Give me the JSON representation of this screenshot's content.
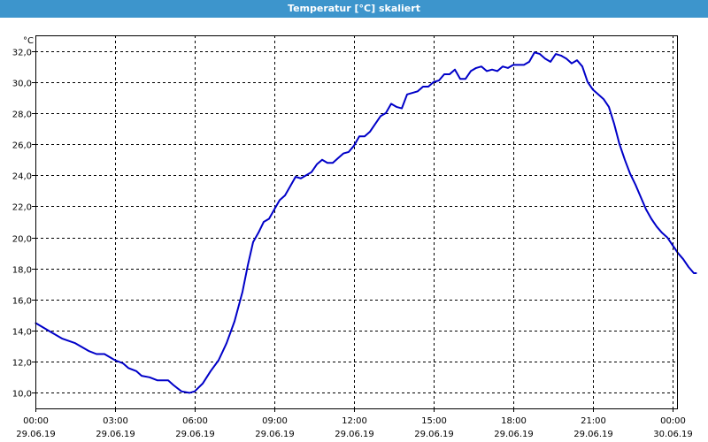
{
  "window": {
    "title": "Temperatur [°C] skaliert"
  },
  "chart_data": {
    "type": "line",
    "title": "Temperatur [°C] skaliert",
    "ylabel": "°C",
    "xlabel": "",
    "ylim": [
      9,
      33
    ],
    "xlim": [
      0,
      24
    ],
    "grid": true,
    "y_ticks": [
      10,
      12,
      14,
      16,
      18,
      20,
      22,
      24,
      26,
      28,
      30,
      32
    ],
    "y_tick_labels": [
      "10,0",
      "12,0",
      "14,0",
      "16,0",
      "18,0",
      "20,0",
      "22,0",
      "24,0",
      "26,0",
      "28,0",
      "30,0",
      "32,0"
    ],
    "x_ticks": [
      {
        "hour": 0,
        "time": "00:00",
        "date": "29.06.19"
      },
      {
        "hour": 3,
        "time": "03:00",
        "date": "29.06.19"
      },
      {
        "hour": 6,
        "time": "06:00",
        "date": "29.06.19"
      },
      {
        "hour": 9,
        "time": "09:00",
        "date": "29.06.19"
      },
      {
        "hour": 12,
        "time": "12:00",
        "date": "29.06.19"
      },
      {
        "hour": 15,
        "time": "15:00",
        "date": "29.06.19"
      },
      {
        "hour": 18,
        "time": "18:00",
        "date": "29.06.19"
      },
      {
        "hour": 21,
        "time": "21:00",
        "date": "29.06.19"
      },
      {
        "hour": 24,
        "time": "00:00",
        "date": "30.06.19"
      }
    ],
    "series": [
      {
        "color": "#0000c8",
        "points": [
          [
            0,
            14.5
          ],
          [
            0.5,
            14.0
          ],
          [
            1,
            13.5
          ],
          [
            1.5,
            13.2
          ],
          [
            2,
            12.7
          ],
          [
            2.3,
            12.5
          ],
          [
            2.6,
            12.5
          ],
          [
            3,
            12.1
          ],
          [
            3.3,
            11.9
          ],
          [
            3.5,
            11.6
          ],
          [
            3.8,
            11.4
          ],
          [
            4,
            11.1
          ],
          [
            4.3,
            11.0
          ],
          [
            4.6,
            10.8
          ],
          [
            4.8,
            10.8
          ],
          [
            5,
            10.8
          ],
          [
            5.2,
            10.5
          ],
          [
            5.5,
            10.1
          ],
          [
            5.8,
            10.0
          ],
          [
            6,
            10.1
          ],
          [
            6.3,
            10.6
          ],
          [
            6.6,
            11.4
          ],
          [
            6.9,
            12.1
          ],
          [
            7.2,
            13.2
          ],
          [
            7.5,
            14.6
          ],
          [
            7.8,
            16.5
          ],
          [
            8,
            18.2
          ],
          [
            8.2,
            19.7
          ],
          [
            8.4,
            20.3
          ],
          [
            8.6,
            21.0
          ],
          [
            8.8,
            21.2
          ],
          [
            9,
            21.8
          ],
          [
            9.2,
            22.4
          ],
          [
            9.4,
            22.7
          ],
          [
            9.6,
            23.3
          ],
          [
            9.8,
            23.9
          ],
          [
            10,
            23.8
          ],
          [
            10.2,
            24.0
          ],
          [
            10.4,
            24.2
          ],
          [
            10.6,
            24.7
          ],
          [
            10.8,
            25.0
          ],
          [
            11,
            24.8
          ],
          [
            11.2,
            24.8
          ],
          [
            11.4,
            25.1
          ],
          [
            11.6,
            25.4
          ],
          [
            11.8,
            25.5
          ],
          [
            12,
            25.9
          ],
          [
            12.2,
            26.5
          ],
          [
            12.4,
            26.5
          ],
          [
            12.6,
            26.8
          ],
          [
            12.8,
            27.3
          ],
          [
            13,
            27.8
          ],
          [
            13.2,
            28.0
          ],
          [
            13.4,
            28.6
          ],
          [
            13.6,
            28.4
          ],
          [
            13.8,
            28.3
          ],
          [
            14,
            29.2
          ],
          [
            14.2,
            29.3
          ],
          [
            14.4,
            29.4
          ],
          [
            14.6,
            29.7
          ],
          [
            14.8,
            29.7
          ],
          [
            15,
            30.0
          ],
          [
            15.2,
            30.1
          ],
          [
            15.4,
            30.5
          ],
          [
            15.6,
            30.5
          ],
          [
            15.8,
            30.8
          ],
          [
            16,
            30.2
          ],
          [
            16.2,
            30.2
          ],
          [
            16.4,
            30.7
          ],
          [
            16.6,
            30.9
          ],
          [
            16.8,
            31.0
          ],
          [
            17,
            30.7
          ],
          [
            17.2,
            30.8
          ],
          [
            17.4,
            30.7
          ],
          [
            17.6,
            31.0
          ],
          [
            17.8,
            30.9
          ],
          [
            18,
            31.1
          ],
          [
            18.2,
            31.1
          ],
          [
            18.4,
            31.1
          ],
          [
            18.6,
            31.3
          ],
          [
            18.8,
            31.9
          ],
          [
            19,
            31.8
          ],
          [
            19.2,
            31.5
          ],
          [
            19.4,
            31.3
          ],
          [
            19.6,
            31.8
          ],
          [
            19.8,
            31.7
          ],
          [
            20,
            31.5
          ],
          [
            20.2,
            31.2
          ],
          [
            20.4,
            31.4
          ],
          [
            20.6,
            31.0
          ],
          [
            20.8,
            30.0
          ],
          [
            21,
            29.5
          ],
          [
            21.2,
            29.2
          ],
          [
            21.4,
            28.9
          ],
          [
            21.6,
            28.4
          ],
          [
            21.8,
            27.3
          ],
          [
            22,
            26.0
          ],
          [
            22.2,
            25.0
          ],
          [
            22.4,
            24.1
          ],
          [
            22.6,
            23.4
          ],
          [
            22.8,
            22.6
          ],
          [
            23,
            21.8
          ],
          [
            23.2,
            21.2
          ],
          [
            23.4,
            20.7
          ],
          [
            23.6,
            20.3
          ],
          [
            23.8,
            20.0
          ],
          [
            24,
            19.5
          ],
          [
            24.2,
            19.0
          ],
          [
            24.4,
            18.6
          ],
          [
            24.6,
            18.1
          ],
          [
            24.8,
            17.7
          ],
          [
            24.9,
            17.7
          ]
        ]
      }
    ]
  }
}
